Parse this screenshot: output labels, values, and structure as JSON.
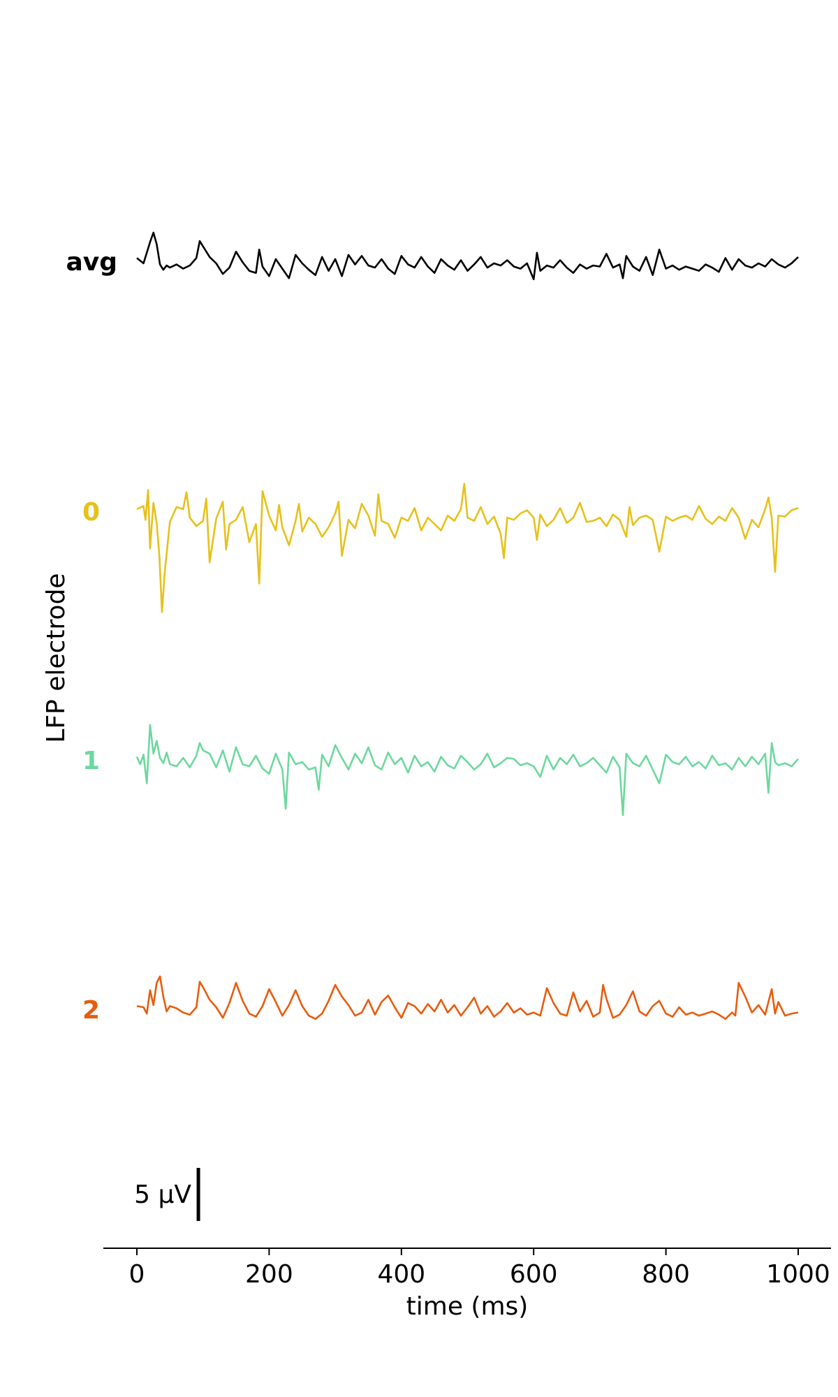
{
  "chart_data": {
    "type": "line",
    "xlabel": "time (ms)",
    "ylabel": "LFP electrode",
    "xlim": [
      -50,
      1050
    ],
    "x_ticks": [
      0,
      200,
      400,
      600,
      800,
      1000
    ],
    "x_tick_labels": [
      "0",
      "200",
      "400",
      "600",
      "800",
      "1000"
    ],
    "grid": false,
    "scale_bar": {
      "label": "5 μV",
      "value_uV": 5,
      "x_ms": 93
    },
    "series": [
      {
        "name": "avg",
        "color": "#000000",
        "x": [
          0,
          10,
          20,
          25,
          30,
          35,
          40,
          45,
          50,
          60,
          70,
          80,
          90,
          95,
          100,
          110,
          120,
          130,
          140,
          150,
          160,
          170,
          180,
          185,
          190,
          200,
          210,
          220,
          230,
          240,
          250,
          260,
          270,
          280,
          290,
          300,
          310,
          320,
          330,
          340,
          350,
          360,
          370,
          380,
          390,
          400,
          410,
          420,
          430,
          440,
          450,
          460,
          470,
          480,
          490,
          500,
          510,
          520,
          530,
          540,
          550,
          560,
          570,
          580,
          590,
          600,
          605,
          610,
          620,
          630,
          640,
          650,
          660,
          670,
          680,
          690,
          700,
          710,
          720,
          730,
          735,
          740,
          750,
          760,
          770,
          780,
          790,
          800,
          810,
          820,
          830,
          840,
          850,
          860,
          870,
          880,
          890,
          900,
          910,
          920,
          930,
          940,
          950,
          960,
          970,
          980,
          990,
          1000
        ],
        "y": [
          0.3,
          -0.2,
          1.8,
          2.7,
          1.6,
          -0.3,
          -0.8,
          -0.4,
          -0.6,
          -0.3,
          -0.7,
          -0.4,
          0.3,
          1.9,
          1.4,
          0.4,
          -0.2,
          -1.2,
          -0.6,
          0.9,
          -0.1,
          -0.9,
          -1.1,
          1.1,
          -0.5,
          -1.4,
          0.2,
          -0.7,
          -1.6,
          0.6,
          -0.2,
          -0.8,
          -1.3,
          0.4,
          -0.9,
          0.2,
          -1.4,
          0.6,
          -0.3,
          0.5,
          -0.4,
          -0.6,
          0.2,
          -0.7,
          -1.2,
          0.5,
          -0.3,
          -0.6,
          0.4,
          -0.5,
          -1.1,
          0.2,
          -0.4,
          -0.8,
          0.1,
          -0.9,
          -0.3,
          0.4,
          -0.6,
          -0.2,
          -0.4,
          0.1,
          -0.5,
          -0.7,
          -0.2,
          -1.7,
          0.8,
          -0.9,
          -0.4,
          -0.6,
          0.1,
          -0.6,
          -1.1,
          -0.3,
          -0.7,
          -0.4,
          -0.5,
          0.7,
          -0.6,
          -0.3,
          -1.6,
          0.5,
          -0.5,
          -0.9,
          0.4,
          -1.3,
          1.1,
          -0.7,
          -0.4,
          -0.8,
          -0.5,
          -0.7,
          -0.9,
          -0.3,
          -0.6,
          -1.0,
          0.3,
          -0.8,
          0.2,
          -0.4,
          -0.6,
          -0.2,
          -0.5,
          0.2,
          -0.3,
          -0.6,
          -0.2,
          0.4
        ]
      },
      {
        "name": "0",
        "color": "#e6c11a",
        "x": [
          0,
          10,
          13,
          17,
          20,
          25,
          30,
          34,
          38,
          42,
          50,
          60,
          70,
          75,
          80,
          90,
          100,
          105,
          110,
          120,
          130,
          135,
          140,
          150,
          160,
          170,
          180,
          185,
          190,
          200,
          210,
          215,
          220,
          230,
          240,
          245,
          250,
          260,
          270,
          280,
          290,
          300,
          305,
          310,
          320,
          330,
          340,
          350,
          360,
          365,
          370,
          380,
          390,
          400,
          410,
          420,
          430,
          440,
          450,
          460,
          470,
          480,
          490,
          495,
          500,
          510,
          520,
          530,
          540,
          550,
          555,
          560,
          570,
          580,
          590,
          600,
          605,
          610,
          620,
          630,
          640,
          650,
          660,
          670,
          680,
          690,
          700,
          710,
          720,
          730,
          740,
          745,
          750,
          760,
          770,
          780,
          790,
          800,
          810,
          820,
          830,
          840,
          850,
          860,
          870,
          880,
          890,
          900,
          910,
          920,
          930,
          940,
          950,
          955,
          960,
          965,
          970,
          980,
          990,
          1000
        ],
        "y": [
          0.2,
          0.5,
          -0.8,
          2.0,
          -3.5,
          0.8,
          -1.1,
          -4.2,
          -9.5,
          -5.8,
          -1.0,
          0.4,
          0.2,
          1.8,
          -0.6,
          -1.4,
          -0.9,
          1.2,
          -4.8,
          -0.7,
          0.9,
          -3.6,
          -1.2,
          -0.8,
          0.4,
          -2.9,
          -1.2,
          -6.8,
          1.9,
          -0.4,
          -1.8,
          0.6,
          -1.5,
          -3.2,
          -0.9,
          0.7,
          -1.9,
          -0.6,
          -1.2,
          -2.4,
          -1.5,
          -0.2,
          0.9,
          -4.2,
          -0.8,
          -1.6,
          0.7,
          -0.4,
          -2.3,
          1.6,
          -0.9,
          -1.2,
          -2.5,
          -0.6,
          -0.9,
          0.3,
          -1.8,
          -0.6,
          -1.2,
          -1.8,
          -0.4,
          -0.9,
          0.2,
          2.6,
          -0.6,
          -0.9,
          0.4,
          -1.2,
          -0.5,
          -2.1,
          -4.4,
          -0.6,
          -0.8,
          -0.2,
          0.1,
          -0.6,
          -2.7,
          -0.3,
          -1.4,
          -0.8,
          0.3,
          -1.1,
          -0.6,
          0.8,
          -1.0,
          -0.9,
          -0.6,
          -1.4,
          -0.3,
          -0.8,
          -2.4,
          0.4,
          -1.3,
          -0.6,
          -0.4,
          -0.8,
          -3.8,
          -0.5,
          -0.9,
          -0.6,
          -0.4,
          -0.8,
          0.5,
          -0.7,
          -1.2,
          -0.5,
          -0.9,
          0.3,
          -0.6,
          -2.6,
          -0.8,
          -1.5,
          0.2,
          1.3,
          -0.6,
          -5.7,
          -0.4,
          -0.5,
          0.1,
          0.3
        ]
      },
      {
        "name": "1",
        "color": "#6dd89e",
        "x": [
          0,
          5,
          10,
          15,
          20,
          25,
          30,
          35,
          40,
          45,
          50,
          60,
          70,
          80,
          90,
          95,
          100,
          110,
          120,
          130,
          140,
          150,
          160,
          170,
          180,
          190,
          200,
          210,
          220,
          225,
          230,
          240,
          250,
          260,
          270,
          275,
          280,
          290,
          300,
          310,
          320,
          330,
          340,
          350,
          360,
          370,
          380,
          390,
          400,
          410,
          420,
          430,
          440,
          450,
          460,
          470,
          480,
          490,
          500,
          510,
          520,
          530,
          540,
          550,
          560,
          570,
          580,
          590,
          600,
          610,
          620,
          630,
          640,
          650,
          660,
          670,
          680,
          690,
          700,
          710,
          720,
          730,
          735,
          740,
          750,
          760,
          770,
          780,
          790,
          800,
          810,
          820,
          830,
          840,
          850,
          860,
          870,
          880,
          890,
          900,
          910,
          920,
          930,
          940,
          950,
          955,
          960,
          965,
          970,
          980,
          990,
          1000
        ],
        "y": [
          0.3,
          -0.4,
          0.5,
          -2.2,
          3.3,
          0.6,
          1.8,
          0.2,
          -0.3,
          0.7,
          -0.4,
          -0.6,
          0.2,
          -0.7,
          0.4,
          1.6,
          0.9,
          0.6,
          -0.7,
          0.9,
          -1.1,
          1.2,
          -0.4,
          -0.6,
          0.4,
          -0.8,
          -1.3,
          0.6,
          -0.9,
          -4.6,
          0.7,
          -0.4,
          -0.2,
          -0.9,
          -0.7,
          -2.8,
          0.5,
          -0.6,
          1.4,
          0.2,
          -0.9,
          0.6,
          -0.3,
          1.2,
          -0.5,
          -0.9,
          0.7,
          -0.4,
          0.2,
          -1.2,
          0.4,
          -0.6,
          -0.2,
          -1.1,
          0.3,
          -0.5,
          -0.8,
          0.4,
          -0.2,
          -0.9,
          -0.4,
          0.6,
          -0.7,
          -0.3,
          0.2,
          0.1,
          -0.5,
          -0.3,
          -0.6,
          -1.6,
          0.4,
          -0.9,
          0.2,
          -0.4,
          0.5,
          -0.6,
          -0.3,
          0.2,
          -0.5,
          -1.2,
          0.3,
          -0.7,
          -5.2,
          0.6,
          -0.3,
          -0.6,
          0.4,
          -0.9,
          -2.2,
          0.5,
          -0.2,
          -0.4,
          0.3,
          -0.6,
          -0.2,
          -0.8,
          0.4,
          -0.5,
          -0.3,
          -0.9,
          0.2,
          -0.6,
          0.3,
          -0.4,
          0.6,
          -3.1,
          1.6,
          -0.2,
          -0.5,
          -0.3,
          -0.6,
          0.1
        ]
      },
      {
        "name": "2",
        "color": "#e85c0d",
        "x": [
          0,
          10,
          15,
          20,
          25,
          30,
          35,
          40,
          45,
          50,
          60,
          70,
          80,
          90,
          95,
          100,
          110,
          120,
          130,
          140,
          150,
          160,
          170,
          180,
          190,
          200,
          210,
          220,
          230,
          240,
          250,
          260,
          270,
          280,
          290,
          300,
          310,
          320,
          330,
          340,
          350,
          360,
          370,
          380,
          390,
          400,
          410,
          420,
          430,
          440,
          450,
          460,
          470,
          480,
          490,
          500,
          510,
          520,
          530,
          540,
          550,
          560,
          570,
          580,
          590,
          600,
          610,
          620,
          630,
          640,
          650,
          660,
          670,
          680,
          690,
          700,
          705,
          710,
          720,
          730,
          740,
          750,
          760,
          770,
          780,
          790,
          800,
          810,
          820,
          830,
          840,
          850,
          860,
          870,
          880,
          890,
          900,
          905,
          910,
          920,
          930,
          940,
          950,
          960,
          965,
          970,
          980,
          990,
          1000
        ],
        "y": [
          0.3,
          0.2,
          -0.4,
          1.8,
          0.4,
          2.5,
          3.1,
          1.2,
          -0.2,
          0.3,
          0.1,
          -0.3,
          -0.5,
          0.2,
          2.6,
          2.1,
          0.9,
          0.2,
          -0.8,
          0.6,
          2.5,
          0.8,
          -0.4,
          -0.7,
          0.3,
          1.9,
          0.7,
          -0.6,
          0.4,
          1.8,
          0.3,
          -0.6,
          -0.9,
          -0.4,
          0.8,
          2.3,
          1.2,
          0.4,
          -0.6,
          -0.3,
          0.9,
          -0.5,
          0.7,
          1.3,
          0.2,
          -0.8,
          0.6,
          0.3,
          -0.4,
          0.5,
          -0.2,
          0.9,
          -0.3,
          0.4,
          -0.6,
          0.2,
          1.1,
          -0.4,
          0.3,
          -0.7,
          -0.2,
          0.6,
          -0.3,
          0.1,
          -0.5,
          -0.3,
          -0.6,
          2.0,
          0.6,
          -0.4,
          -0.6,
          1.6,
          -0.2,
          0.8,
          -0.7,
          -0.3,
          2.3,
          1.0,
          -0.8,
          -0.5,
          0.4,
          1.7,
          -0.2,
          -0.6,
          0.3,
          0.8,
          -0.4,
          -0.7,
          0.2,
          -0.5,
          -0.3,
          -0.6,
          -0.4,
          -0.2,
          -0.5,
          -0.9,
          -0.3,
          -0.6,
          2.5,
          1.2,
          -0.3,
          0.4,
          -0.5,
          1.9,
          -0.4,
          0.7,
          -0.6,
          -0.4,
          -0.3
        ]
      }
    ]
  }
}
